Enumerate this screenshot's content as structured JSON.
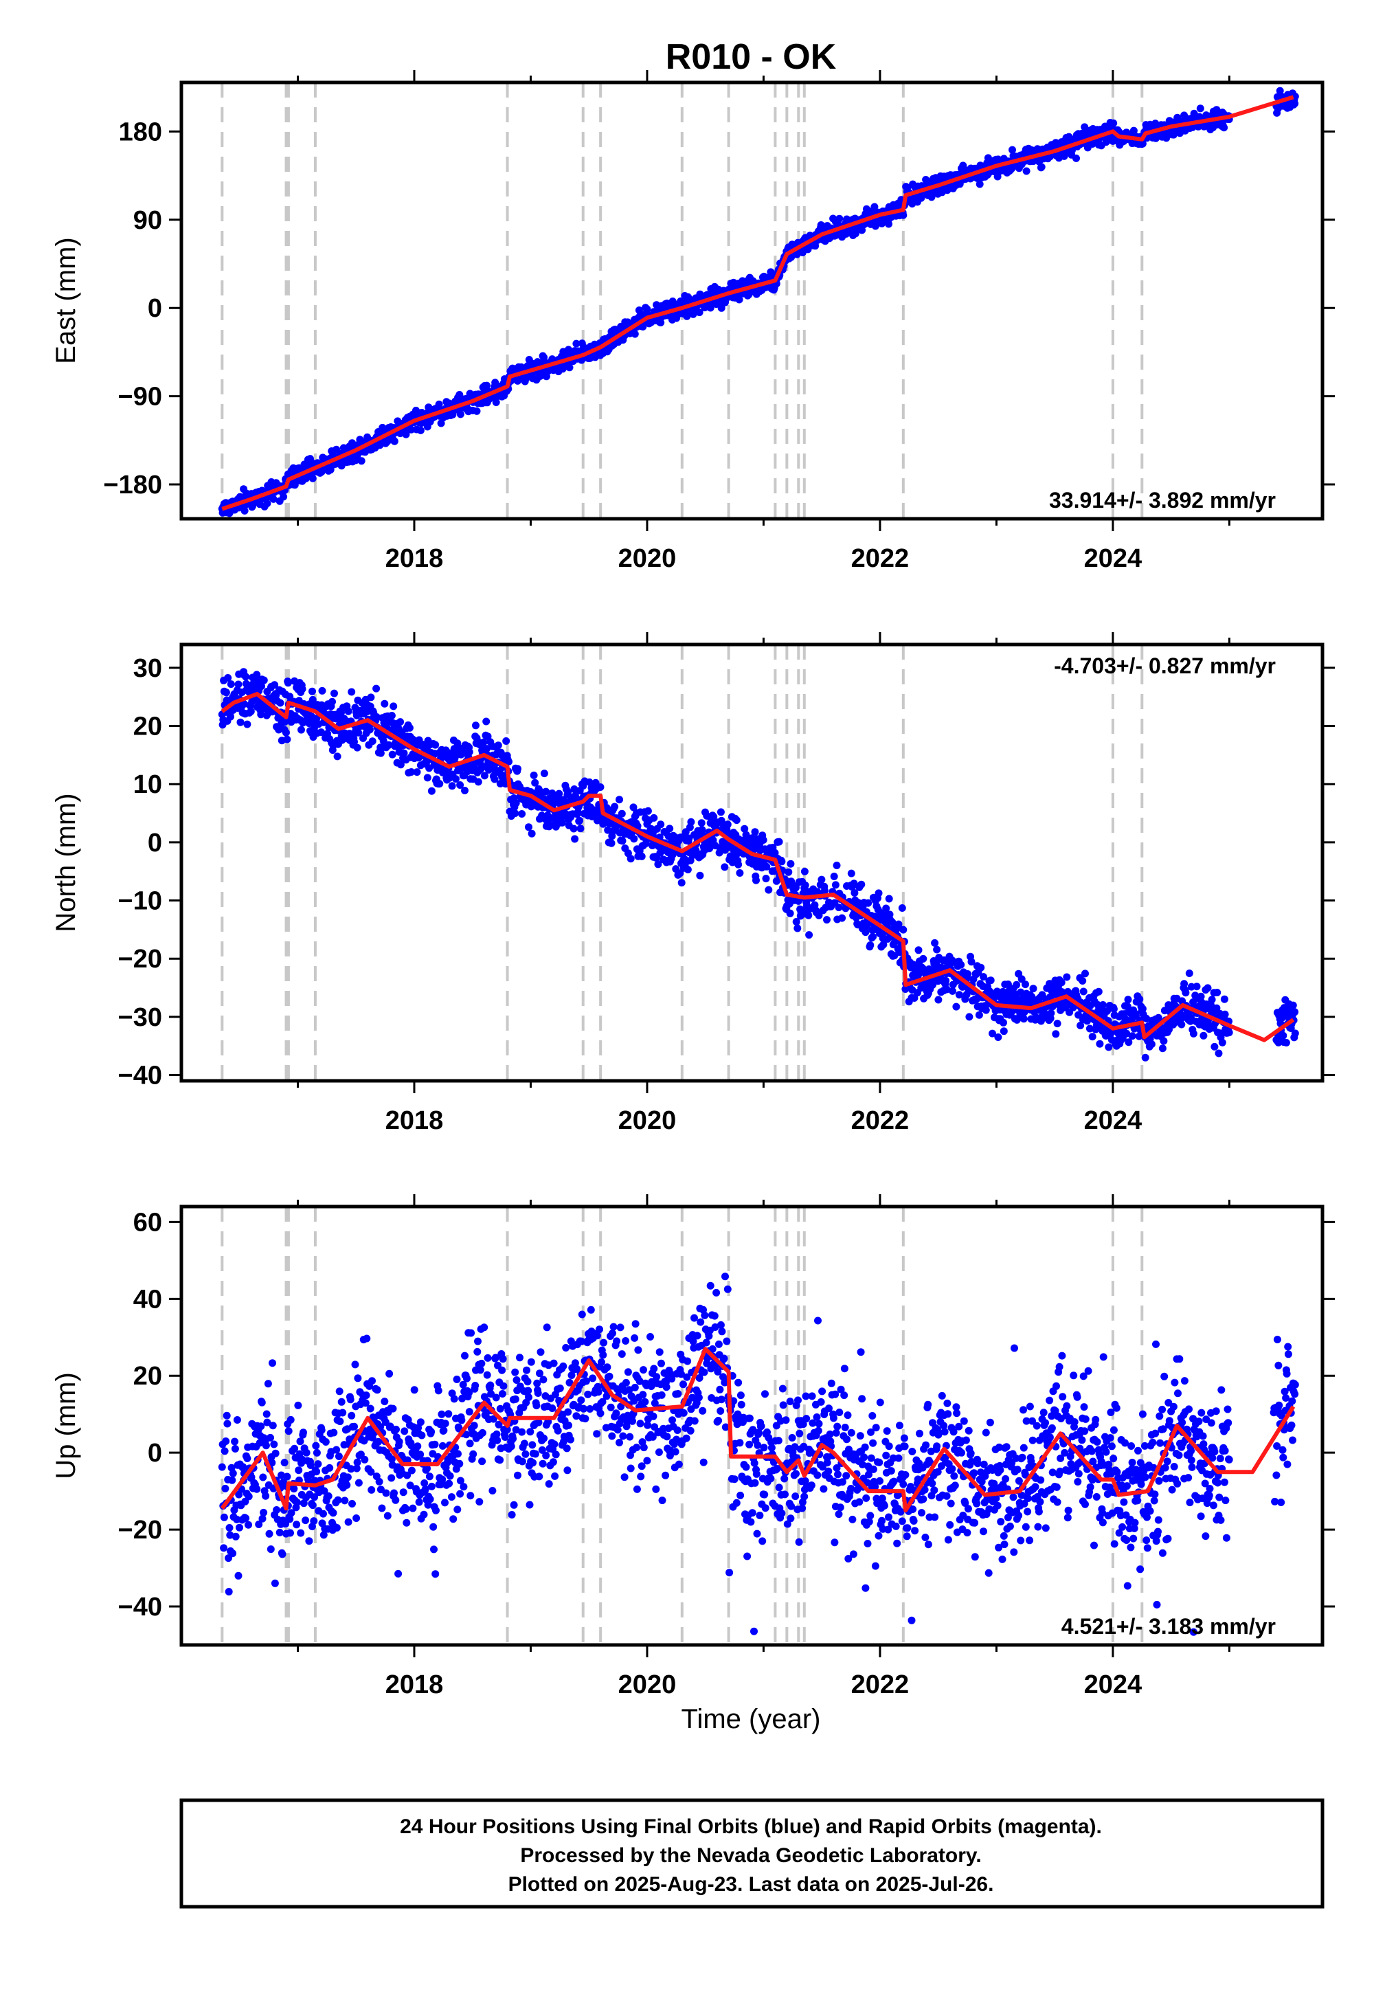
{
  "chart_data": [
    {
      "type": "scatter",
      "title": "R010 - OK",
      "xlabel": "",
      "ylabel": "East (mm)",
      "xlim": [
        2016.0,
        2025.8
      ],
      "ylim": [
        -215,
        230
      ],
      "xticks": [
        "2018",
        "2020",
        "2022",
        "2024"
      ],
      "yticks": [
        "180",
        "90",
        "0",
        "−90",
        "−180"
      ],
      "ytick_values": [
        180,
        90,
        0,
        -90,
        -180
      ],
      "rate_text": "33.914+/- 3.892 mm/yr",
      "rate_position": "bottom-right",
      "grid": false,
      "series": [
        {
          "color": "#0000ff",
          "marker": "dot",
          "points_description_values": [
            [
              2016.35,
              -210
            ],
            [
              2016.6,
              -195
            ],
            [
              2017.0,
              -170
            ],
            [
              2017.5,
              -145
            ],
            [
              2018.0,
              -115
            ],
            [
              2018.5,
              -95
            ],
            [
              2019.0,
              -65
            ],
            [
              2019.5,
              -45
            ],
            [
              2020.0,
              -10
            ],
            [
              2020.5,
              5
            ],
            [
              2021.0,
              25
            ],
            [
              2021.2,
              60
            ],
            [
              2021.5,
              70
            ],
            [
              2022.0,
              95
            ],
            [
              2022.2,
              120
            ],
            [
              2022.5,
              130
            ],
            [
              2023.0,
              150
            ],
            [
              2023.5,
              160
            ],
            [
              2024.0,
              180
            ],
            [
              2024.5,
              185
            ],
            [
              2025.0,
              200
            ],
            [
              2025.55,
              215
            ]
          ]
        },
        {
          "color": "#ff0000",
          "marker": "line",
          "points_description_values": [
            [
              2016.35,
              -205
            ],
            [
              2016.6,
              -195
            ],
            [
              2016.9,
              -182
            ],
            [
              2016.92,
              -175
            ],
            [
              2017.5,
              -145
            ],
            [
              2018.0,
              -115
            ],
            [
              2018.5,
              -95
            ],
            [
              2018.8,
              -80
            ],
            [
              2018.82,
              -70
            ],
            [
              2019.45,
              -48
            ],
            [
              2019.6,
              -40
            ],
            [
              2020.0,
              -10
            ],
            [
              2020.3,
              0
            ],
            [
              2020.7,
              15
            ],
            [
              2021.1,
              28
            ],
            [
              2021.2,
              55
            ],
            [
              2021.35,
              65
            ],
            [
              2021.5,
              75
            ],
            [
              2022.0,
              95
            ],
            [
              2022.2,
              100
            ],
            [
              2022.22,
              115
            ],
            [
              2022.5,
              125
            ],
            [
              2023.0,
              145
            ],
            [
              2023.5,
              160
            ],
            [
              2024.0,
              180
            ],
            [
              2024.05,
              175
            ],
            [
              2024.25,
              172
            ],
            [
              2024.28,
              178
            ],
            [
              2024.5,
              185
            ],
            [
              2025.0,
              195
            ],
            [
              2025.55,
              215
            ]
          ]
        }
      ],
      "vertical_dashed_lines": [
        2016.35,
        2016.9,
        2016.92,
        2017.15,
        2018.8,
        2019.45,
        2019.6,
        2020.3,
        2020.7,
        2021.1,
        2021.2,
        2021.3,
        2021.35,
        2022.2,
        2024.0,
        2024.25
      ]
    },
    {
      "type": "scatter",
      "ylabel": "North (mm)",
      "xlim": [
        2016.0,
        2025.8
      ],
      "ylim": [
        -41,
        34
      ],
      "xticks": [
        "2018",
        "2020",
        "2022",
        "2024"
      ],
      "yticks": [
        "30",
        "20",
        "10",
        "0",
        "−10",
        "−20",
        "−30",
        "−40"
      ],
      "ytick_values": [
        30,
        20,
        10,
        0,
        -10,
        -20,
        -30,
        -40
      ],
      "rate_text": "-4.703+/- 0.827 mm/yr",
      "rate_position": "top-right",
      "grid": false,
      "series": [
        {
          "color": "#0000ff",
          "marker": "dot",
          "points_description_values": [
            [
              2016.4,
              24
            ],
            [
              2016.7,
              26
            ],
            [
              2017.0,
              23
            ],
            [
              2017.5,
              20
            ],
            [
              2018.0,
              15
            ],
            [
              2018.5,
              13
            ],
            [
              2018.8,
              10
            ],
            [
              2019.2,
              5
            ],
            [
              2019.6,
              8
            ],
            [
              2020.0,
              2
            ],
            [
              2020.3,
              -2
            ],
            [
              2020.6,
              1
            ],
            [
              2021.0,
              -3
            ],
            [
              2021.2,
              -10
            ],
            [
              2021.7,
              -8
            ],
            [
              2022.0,
              -13
            ],
            [
              2022.2,
              -24
            ],
            [
              2022.6,
              -22
            ],
            [
              2023.0,
              -27
            ],
            [
              2023.5,
              -27
            ],
            [
              2024.0,
              -31
            ],
            [
              2024.5,
              -29
            ],
            [
              2025.0,
              -32
            ],
            [
              2025.55,
              -30
            ]
          ]
        },
        {
          "color": "#ff0000",
          "marker": "line",
          "points_description_values": [
            [
              2016.35,
              22.5
            ],
            [
              2016.45,
              24
            ],
            [
              2016.65,
              25.5
            ],
            [
              2016.9,
              21.5
            ],
            [
              2016.92,
              24
            ],
            [
              2017.15,
              22.5
            ],
            [
              2017.35,
              19.5
            ],
            [
              2017.6,
              21
            ],
            [
              2018.0,
              16
            ],
            [
              2018.3,
              13
            ],
            [
              2018.6,
              15
            ],
            [
              2018.8,
              13
            ],
            [
              2018.82,
              9
            ],
            [
              2019.0,
              8
            ],
            [
              2019.2,
              5.5
            ],
            [
              2019.45,
              7
            ],
            [
              2019.5,
              8
            ],
            [
              2019.6,
              8
            ],
            [
              2019.62,
              5
            ],
            [
              2020.0,
              1
            ],
            [
              2020.3,
              -1.5
            ],
            [
              2020.6,
              2
            ],
            [
              2020.7,
              0.5
            ],
            [
              2020.9,
              -2
            ],
            [
              2021.1,
              -3
            ],
            [
              2021.2,
              -9
            ],
            [
              2021.35,
              -9.5
            ],
            [
              2021.6,
              -9
            ],
            [
              2021.9,
              -13
            ],
            [
              2022.2,
              -17
            ],
            [
              2022.22,
              -24.5
            ],
            [
              2022.6,
              -22
            ],
            [
              2023.0,
              -28
            ],
            [
              2023.3,
              -28.5
            ],
            [
              2023.6,
              -26.5
            ],
            [
              2024.0,
              -32
            ],
            [
              2024.25,
              -31
            ],
            [
              2024.27,
              -33.5
            ],
            [
              2024.6,
              -28
            ],
            [
              2025.0,
              -31.5
            ],
            [
              2025.3,
              -34
            ],
            [
              2025.55,
              -30.5
            ]
          ]
        }
      ],
      "vertical_dashed_lines": [
        2016.35,
        2016.9,
        2016.92,
        2017.15,
        2018.8,
        2019.45,
        2019.6,
        2020.3,
        2020.7,
        2021.1,
        2021.2,
        2021.3,
        2021.35,
        2022.2,
        2024.0,
        2024.25
      ]
    },
    {
      "type": "scatter",
      "ylabel": "Up (mm)",
      "xlabel": "Time (year)",
      "xlim": [
        2016.0,
        2025.8
      ],
      "ylim": [
        -50,
        64
      ],
      "xticks": [
        "2018",
        "2020",
        "2022",
        "2024"
      ],
      "yticks": [
        "60",
        "40",
        "20",
        "0",
        "−20",
        "−40"
      ],
      "ytick_values": [
        60,
        40,
        20,
        0,
        -20,
        -40
      ],
      "rate_text": "4.521+/- 3.183 mm/yr",
      "rate_position": "bottom-right",
      "grid": false,
      "series": [
        {
          "color": "#0000ff",
          "marker": "dot",
          "points_description_values": [
            [
              2016.4,
              -10
            ],
            [
              2016.7,
              0
            ],
            [
              2017.0,
              -12
            ],
            [
              2017.6,
              8
            ],
            [
              2018.0,
              -5
            ],
            [
              2018.6,
              12
            ],
            [
              2019.0,
              8
            ],
            [
              2019.5,
              22
            ],
            [
              2020.0,
              10
            ],
            [
              2020.5,
              25
            ],
            [
              2021.0,
              -5
            ],
            [
              2021.5,
              2
            ],
            [
              2022.0,
              -10
            ],
            [
              2022.5,
              0
            ],
            [
              2023.0,
              -10
            ],
            [
              2023.5,
              5
            ],
            [
              2024.0,
              -8
            ],
            [
              2024.5,
              6
            ],
            [
              2025.0,
              -4
            ],
            [
              2025.55,
              12
            ]
          ]
        },
        {
          "color": "#ff0000",
          "marker": "line",
          "points_description_values": [
            [
              2016.35,
              -14.5
            ],
            [
              2016.7,
              0
            ],
            [
              2016.9,
              -14.5
            ],
            [
              2016.92,
              -8
            ],
            [
              2017.15,
              -8.5
            ],
            [
              2017.3,
              -7
            ],
            [
              2017.6,
              9
            ],
            [
              2017.9,
              -3
            ],
            [
              2018.2,
              -3
            ],
            [
              2018.6,
              13
            ],
            [
              2018.8,
              7
            ],
            [
              2018.82,
              9
            ],
            [
              2019.2,
              9
            ],
            [
              2019.5,
              24
            ],
            [
              2019.7,
              15
            ],
            [
              2019.9,
              11
            ],
            [
              2020.3,
              12
            ],
            [
              2020.5,
              27
            ],
            [
              2020.7,
              21
            ],
            [
              2020.72,
              -1
            ],
            [
              2021.1,
              -1
            ],
            [
              2021.2,
              -5
            ],
            [
              2021.3,
              -2
            ],
            [
              2021.35,
              -6
            ],
            [
              2021.5,
              2
            ],
            [
              2021.6,
              0
            ],
            [
              2021.9,
              -10
            ],
            [
              2022.2,
              -10
            ],
            [
              2022.22,
              -15
            ],
            [
              2022.55,
              1
            ],
            [
              2022.9,
              -11
            ],
            [
              2023.2,
              -10
            ],
            [
              2023.55,
              5
            ],
            [
              2023.9,
              -7
            ],
            [
              2024.0,
              -7
            ],
            [
              2024.05,
              -11
            ],
            [
              2024.3,
              -10
            ],
            [
              2024.55,
              7
            ],
            [
              2024.9,
              -5
            ],
            [
              2025.2,
              -5
            ],
            [
              2025.55,
              12
            ]
          ]
        }
      ],
      "vertical_dashed_lines": [
        2016.35,
        2016.9,
        2016.92,
        2017.15,
        2018.8,
        2019.45,
        2019.6,
        2020.3,
        2020.7,
        2021.1,
        2021.2,
        2021.3,
        2021.35,
        2022.2,
        2024.0,
        2024.25
      ]
    }
  ],
  "footer": {
    "line1": "24 Hour Positions Using Final Orbits (blue) and Rapid Orbits (magenta).",
    "line2": "Processed by the Nevada Geodetic Laboratory.",
    "line3": "Plotted on 2025-Aug-23. Last data on 2025-Jul-26."
  }
}
